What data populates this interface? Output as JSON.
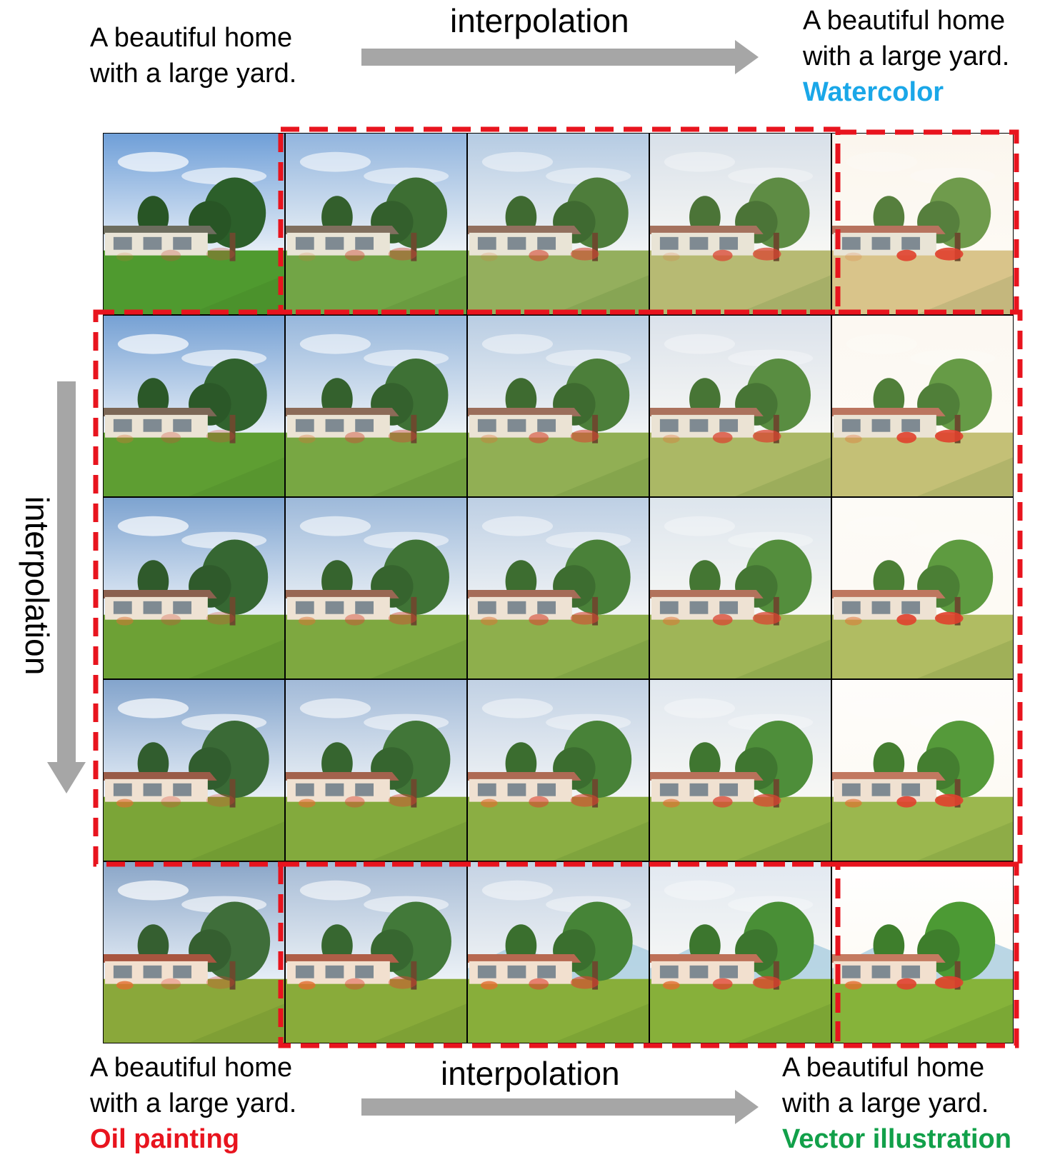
{
  "captions": {
    "top_left": {
      "line1": "A beautiful home",
      "line2": "with a large yard.",
      "style": ""
    },
    "top_right": {
      "line1": "A beautiful home",
      "line2": "with a large yard.",
      "style": "Watercolor",
      "style_color": "#1aa7e8"
    },
    "bottom_left": {
      "line1": "A beautiful home",
      "line2": "with a large yard.",
      "style": "Oil painting",
      "style_color": "#e8141e"
    },
    "bottom_right": {
      "line1": "A beautiful home",
      "line2": "with a large yard.",
      "style": "Vector illustration",
      "style_color": "#12a04a"
    }
  },
  "arrows": {
    "top_label": "interpolation",
    "bottom_label": "interpolation",
    "left_label": "interpolation",
    "arrow_color": "#a6a6a6"
  },
  "grid": {
    "rows": 5,
    "cols": 5,
    "content": "generated images: house with large yard; realistic photo at top-left, watercolor at top-right, oil painting at bottom-left, vector illustration at bottom-right",
    "highlight_color": "#e8141e"
  }
}
